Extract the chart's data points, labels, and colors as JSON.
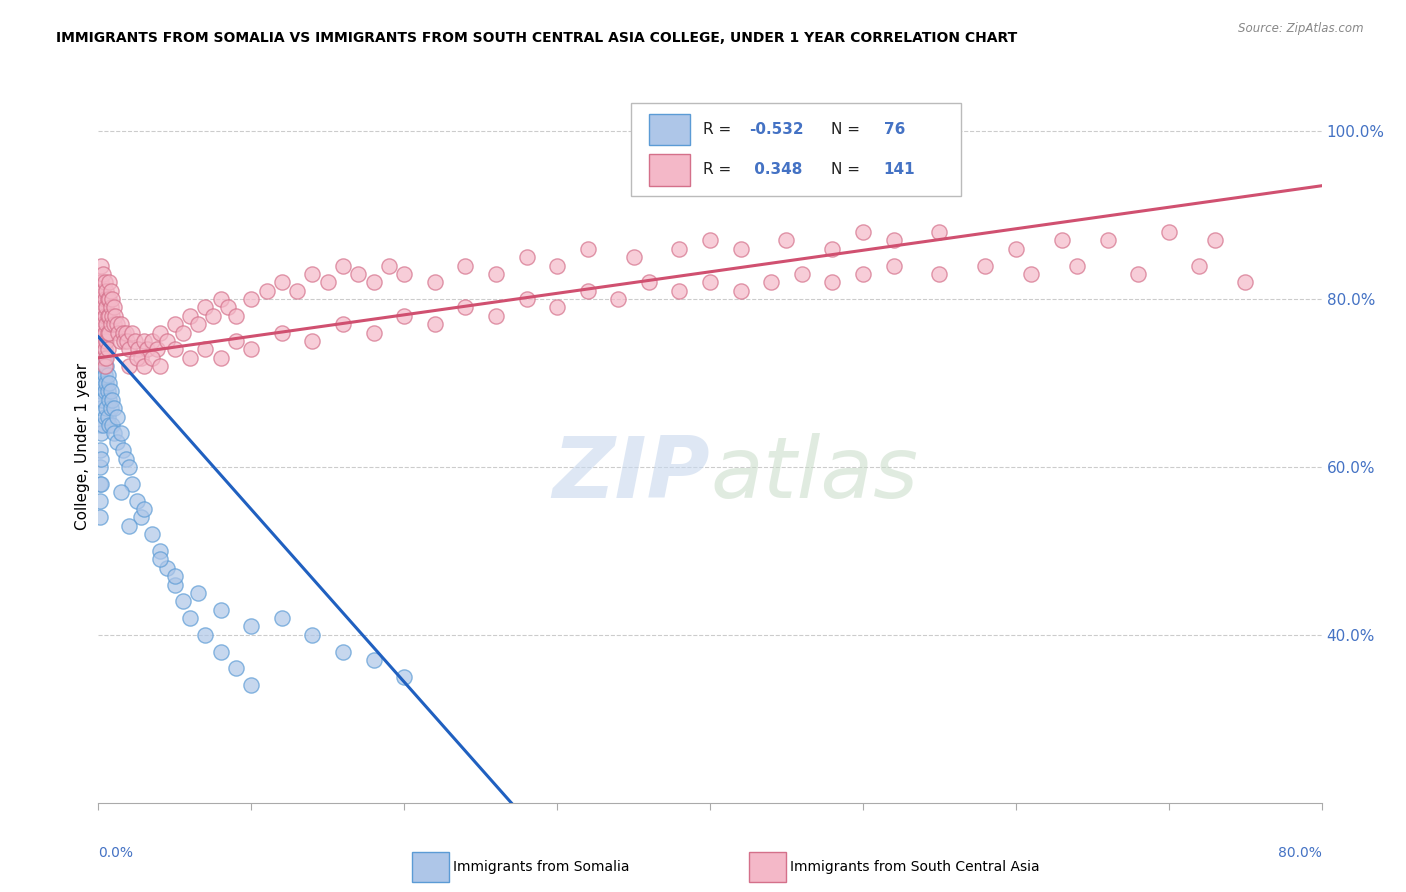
{
  "title": "IMMIGRANTS FROM SOMALIA VS IMMIGRANTS FROM SOUTH CENTRAL ASIA COLLEGE, UNDER 1 YEAR CORRELATION CHART",
  "source": "Source: ZipAtlas.com",
  "ylabel": "College, Under 1 year",
  "somalia_color": "#aec6e8",
  "somalia_edge": "#5b9bd5",
  "sca_color": "#f4b8c8",
  "sca_edge": "#d4708a",
  "somalia_R": -0.532,
  "somalia_N": 76,
  "sca_R": 0.348,
  "sca_N": 141,
  "somalia_line_color": "#2060c0",
  "sca_line_color": "#d05070",
  "somalia_points": [
    [
      0.001,
      0.76
    ],
    [
      0.001,
      0.74
    ],
    [
      0.001,
      0.72
    ],
    [
      0.001,
      0.7
    ],
    [
      0.001,
      0.68
    ],
    [
      0.001,
      0.65
    ],
    [
      0.001,
      0.62
    ],
    [
      0.001,
      0.6
    ],
    [
      0.001,
      0.58
    ],
    [
      0.001,
      0.56
    ],
    [
      0.001,
      0.54
    ],
    [
      0.001,
      0.78
    ],
    [
      0.002,
      0.75
    ],
    [
      0.002,
      0.73
    ],
    [
      0.002,
      0.71
    ],
    [
      0.002,
      0.69
    ],
    [
      0.002,
      0.67
    ],
    [
      0.002,
      0.64
    ],
    [
      0.002,
      0.61
    ],
    [
      0.002,
      0.58
    ],
    [
      0.003,
      0.74
    ],
    [
      0.003,
      0.72
    ],
    [
      0.003,
      0.7
    ],
    [
      0.003,
      0.68
    ],
    [
      0.003,
      0.65
    ],
    [
      0.004,
      0.73
    ],
    [
      0.004,
      0.71
    ],
    [
      0.004,
      0.69
    ],
    [
      0.004,
      0.66
    ],
    [
      0.005,
      0.72
    ],
    [
      0.005,
      0.7
    ],
    [
      0.005,
      0.67
    ],
    [
      0.006,
      0.71
    ],
    [
      0.006,
      0.69
    ],
    [
      0.006,
      0.66
    ],
    [
      0.007,
      0.7
    ],
    [
      0.007,
      0.68
    ],
    [
      0.007,
      0.65
    ],
    [
      0.008,
      0.69
    ],
    [
      0.008,
      0.67
    ],
    [
      0.009,
      0.68
    ],
    [
      0.009,
      0.65
    ],
    [
      0.01,
      0.67
    ],
    [
      0.01,
      0.64
    ],
    [
      0.012,
      0.66
    ],
    [
      0.012,
      0.63
    ],
    [
      0.015,
      0.64
    ],
    [
      0.016,
      0.62
    ],
    [
      0.018,
      0.61
    ],
    [
      0.02,
      0.6
    ],
    [
      0.022,
      0.58
    ],
    [
      0.025,
      0.56
    ],
    [
      0.028,
      0.54
    ],
    [
      0.03,
      0.55
    ],
    [
      0.035,
      0.52
    ],
    [
      0.04,
      0.5
    ],
    [
      0.045,
      0.48
    ],
    [
      0.05,
      0.46
    ],
    [
      0.055,
      0.44
    ],
    [
      0.06,
      0.42
    ],
    [
      0.07,
      0.4
    ],
    [
      0.08,
      0.38
    ],
    [
      0.09,
      0.36
    ],
    [
      0.1,
      0.34
    ],
    [
      0.12,
      0.42
    ],
    [
      0.14,
      0.4
    ],
    [
      0.16,
      0.38
    ],
    [
      0.18,
      0.37
    ],
    [
      0.2,
      0.35
    ],
    [
      0.02,
      0.53
    ],
    [
      0.04,
      0.49
    ],
    [
      0.05,
      0.47
    ],
    [
      0.065,
      0.45
    ],
    [
      0.08,
      0.43
    ],
    [
      0.1,
      0.41
    ],
    [
      0.015,
      0.57
    ]
  ],
  "sca_points": [
    [
      0.001,
      0.82
    ],
    [
      0.001,
      0.8
    ],
    [
      0.001,
      0.78
    ],
    [
      0.001,
      0.76
    ],
    [
      0.002,
      0.84
    ],
    [
      0.002,
      0.82
    ],
    [
      0.002,
      0.8
    ],
    [
      0.002,
      0.78
    ],
    [
      0.002,
      0.76
    ],
    [
      0.002,
      0.74
    ],
    [
      0.003,
      0.83
    ],
    [
      0.003,
      0.81
    ],
    [
      0.003,
      0.79
    ],
    [
      0.003,
      0.77
    ],
    [
      0.003,
      0.75
    ],
    [
      0.003,
      0.73
    ],
    [
      0.004,
      0.82
    ],
    [
      0.004,
      0.8
    ],
    [
      0.004,
      0.78
    ],
    [
      0.004,
      0.76
    ],
    [
      0.004,
      0.74
    ],
    [
      0.004,
      0.72
    ],
    [
      0.005,
      0.81
    ],
    [
      0.005,
      0.79
    ],
    [
      0.005,
      0.77
    ],
    [
      0.005,
      0.75
    ],
    [
      0.005,
      0.73
    ],
    [
      0.006,
      0.8
    ],
    [
      0.006,
      0.78
    ],
    [
      0.006,
      0.76
    ],
    [
      0.006,
      0.74
    ],
    [
      0.007,
      0.82
    ],
    [
      0.007,
      0.8
    ],
    [
      0.007,
      0.78
    ],
    [
      0.007,
      0.76
    ],
    [
      0.008,
      0.81
    ],
    [
      0.008,
      0.79
    ],
    [
      0.008,
      0.77
    ],
    [
      0.009,
      0.8
    ],
    [
      0.009,
      0.78
    ],
    [
      0.01,
      0.79
    ],
    [
      0.01,
      0.77
    ],
    [
      0.011,
      0.78
    ],
    [
      0.012,
      0.77
    ],
    [
      0.013,
      0.76
    ],
    [
      0.014,
      0.75
    ],
    [
      0.015,
      0.77
    ],
    [
      0.016,
      0.76
    ],
    [
      0.017,
      0.75
    ],
    [
      0.018,
      0.76
    ],
    [
      0.019,
      0.75
    ],
    [
      0.02,
      0.74
    ],
    [
      0.022,
      0.76
    ],
    [
      0.024,
      0.75
    ],
    [
      0.026,
      0.74
    ],
    [
      0.028,
      0.73
    ],
    [
      0.03,
      0.75
    ],
    [
      0.032,
      0.74
    ],
    [
      0.035,
      0.75
    ],
    [
      0.038,
      0.74
    ],
    [
      0.04,
      0.76
    ],
    [
      0.045,
      0.75
    ],
    [
      0.05,
      0.77
    ],
    [
      0.055,
      0.76
    ],
    [
      0.06,
      0.78
    ],
    [
      0.065,
      0.77
    ],
    [
      0.07,
      0.79
    ],
    [
      0.075,
      0.78
    ],
    [
      0.08,
      0.8
    ],
    [
      0.085,
      0.79
    ],
    [
      0.09,
      0.78
    ],
    [
      0.1,
      0.8
    ],
    [
      0.11,
      0.81
    ],
    [
      0.12,
      0.82
    ],
    [
      0.13,
      0.81
    ],
    [
      0.14,
      0.83
    ],
    [
      0.15,
      0.82
    ],
    [
      0.16,
      0.84
    ],
    [
      0.17,
      0.83
    ],
    [
      0.18,
      0.82
    ],
    [
      0.19,
      0.84
    ],
    [
      0.2,
      0.83
    ],
    [
      0.22,
      0.82
    ],
    [
      0.24,
      0.84
    ],
    [
      0.26,
      0.83
    ],
    [
      0.28,
      0.85
    ],
    [
      0.3,
      0.84
    ],
    [
      0.32,
      0.86
    ],
    [
      0.35,
      0.85
    ],
    [
      0.38,
      0.86
    ],
    [
      0.4,
      0.87
    ],
    [
      0.42,
      0.86
    ],
    [
      0.45,
      0.87
    ],
    [
      0.48,
      0.86
    ],
    [
      0.5,
      0.88
    ],
    [
      0.52,
      0.87
    ],
    [
      0.55,
      0.88
    ],
    [
      0.6,
      0.86
    ],
    [
      0.63,
      0.87
    ],
    [
      0.66,
      0.87
    ],
    [
      0.7,
      0.88
    ],
    [
      0.73,
      0.87
    ],
    [
      0.02,
      0.72
    ],
    [
      0.025,
      0.73
    ],
    [
      0.03,
      0.72
    ],
    [
      0.035,
      0.73
    ],
    [
      0.04,
      0.72
    ],
    [
      0.05,
      0.74
    ],
    [
      0.06,
      0.73
    ],
    [
      0.07,
      0.74
    ],
    [
      0.08,
      0.73
    ],
    [
      0.09,
      0.75
    ],
    [
      0.1,
      0.74
    ],
    [
      0.12,
      0.76
    ],
    [
      0.14,
      0.75
    ],
    [
      0.16,
      0.77
    ],
    [
      0.18,
      0.76
    ],
    [
      0.2,
      0.78
    ],
    [
      0.22,
      0.77
    ],
    [
      0.24,
      0.79
    ],
    [
      0.26,
      0.78
    ],
    [
      0.28,
      0.8
    ],
    [
      0.3,
      0.79
    ],
    [
      0.32,
      0.81
    ],
    [
      0.34,
      0.8
    ],
    [
      0.36,
      0.82
    ],
    [
      0.38,
      0.81
    ],
    [
      0.4,
      0.82
    ],
    [
      0.42,
      0.81
    ],
    [
      0.44,
      0.82
    ],
    [
      0.46,
      0.83
    ],
    [
      0.48,
      0.82
    ],
    [
      0.5,
      0.83
    ],
    [
      0.52,
      0.84
    ],
    [
      0.55,
      0.83
    ],
    [
      0.58,
      0.84
    ],
    [
      0.61,
      0.83
    ],
    [
      0.64,
      0.84
    ],
    [
      0.68,
      0.83
    ],
    [
      0.72,
      0.84
    ],
    [
      0.75,
      0.82
    ]
  ],
  "xlim": [
    0.0,
    0.8
  ],
  "ylim": [
    0.2,
    1.05
  ],
  "yticks": [
    0.4,
    0.6,
    0.8,
    1.0
  ],
  "ytick_labels": [
    "40.0%",
    "60.0%",
    "80.0%",
    "100.0%"
  ]
}
